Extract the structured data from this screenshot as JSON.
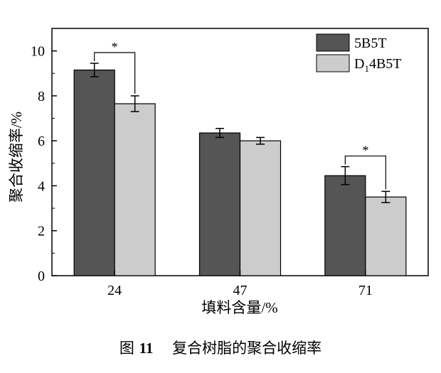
{
  "chart_data": {
    "type": "bar",
    "categories": [
      "24",
      "47",
      "71"
    ],
    "series": [
      {
        "name": "5B5T",
        "legend_base": "5B5T",
        "values": [
          9.15,
          6.35,
          4.45
        ],
        "errors": [
          0.3,
          0.2,
          0.4
        ],
        "color": "#555555"
      },
      {
        "name": "D14B5T",
        "legend_base": "D",
        "legend_sub": "1",
        "legend_rest": "4B5T",
        "values": [
          7.65,
          6.0,
          3.5
        ],
        "errors": [
          0.35,
          0.15,
          0.25
        ],
        "color": "#cccccc"
      }
    ],
    "significance": [
      {
        "category_index": 0,
        "label": "*"
      },
      {
        "category_index": 2,
        "label": "*"
      }
    ],
    "xlabel": "填料含量/%",
    "ylabel": "聚合收缩率/%",
    "ylim": [
      0,
      11
    ],
    "yticks": [
      0,
      2,
      4,
      6,
      8,
      10
    ],
    "grid": false,
    "legend_position": "top-right"
  },
  "caption": {
    "figure_label": "图",
    "figure_number": "11",
    "title": "复合树脂的聚合收缩率"
  }
}
